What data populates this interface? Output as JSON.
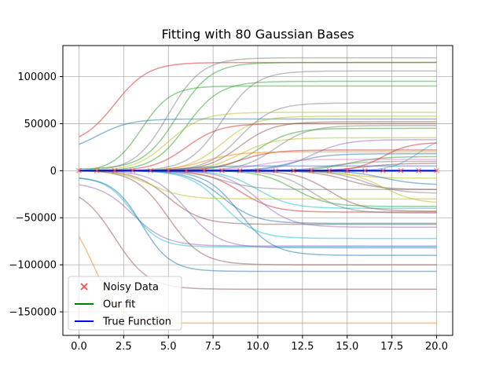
{
  "chart_data": {
    "type": "line",
    "title": "Fitting with 80 Gaussian Bases",
    "xlabel": "",
    "ylabel": "",
    "xlim": [
      -0.9,
      20.9
    ],
    "ylim": [
      -175000,
      133000
    ],
    "x_ticks": [
      0.0,
      2.5,
      5.0,
      7.5,
      10.0,
      12.5,
      15.0,
      17.5,
      20.0
    ],
    "x_tick_labels": [
      "0.0",
      "2.5",
      "5.0",
      "7.5",
      "10.0",
      "12.5",
      "15.0",
      "17.5",
      "20.0"
    ],
    "y_ticks": [
      100000,
      50000,
      0,
      -50000,
      -100000,
      -150000
    ],
    "y_tick_labels": [
      "100000",
      "50000",
      "0",
      "−50000",
      "−100000",
      "−150000"
    ],
    "grid": true,
    "legend_position": "lower-left",
    "legend": [
      {
        "label": "Noisy Data",
        "kind": "marker",
        "color": "#ff4d4d"
      },
      {
        "label": "Our fit",
        "kind": "line",
        "color": "#008000"
      },
      {
        "label": "True Function",
        "kind": "line",
        "color": "#0000ff"
      }
    ],
    "basis_series": [
      {
        "start": 36000,
        "end": 115000,
        "center": 2.0,
        "width": 1.5,
        "color": "#d62728"
      },
      {
        "start": 2000,
        "end": 115000,
        "center": 5.5,
        "width": 1.5,
        "color": "#2ca02c"
      },
      {
        "start": 0,
        "end": 120000,
        "center": 5.0,
        "width": 1.5,
        "color": "#7f7f7f"
      },
      {
        "start": 0,
        "end": 106000,
        "center": 8.0,
        "width": 1.5,
        "color": "#7f7f7f"
      },
      {
        "start": 0,
        "end": 95000,
        "center": 6.0,
        "width": 1.5,
        "color": "#2ca02c"
      },
      {
        "start": 0,
        "end": 90000,
        "center": 3.5,
        "width": 1.3,
        "color": "#2ca02c"
      },
      {
        "start": 0,
        "end": 72000,
        "center": 9.0,
        "width": 1.5,
        "color": "#7f7f7f"
      },
      {
        "start": 0,
        "end": 62000,
        "center": 5.0,
        "width": 1.5,
        "color": "#bcbd22"
      },
      {
        "start": 28000,
        "end": 55000,
        "center": 1.0,
        "width": 1.5,
        "color": "#1f77b4"
      },
      {
        "start": 0,
        "end": 58000,
        "center": 8.0,
        "width": 1.5,
        "color": "#bcbd22"
      },
      {
        "start": 0,
        "end": 52000,
        "center": 9.0,
        "width": 1.5,
        "color": "#8c564b"
      },
      {
        "start": 0,
        "end": 50000,
        "center": 6.0,
        "width": 1.5,
        "color": "#d62728"
      },
      {
        "start": 0,
        "end": 48000,
        "center": 11.0,
        "width": 1.5,
        "color": "#7f7f7f"
      },
      {
        "start": 0,
        "end": 45000,
        "center": 10.0,
        "width": 1.5,
        "color": "#2ca02c"
      },
      {
        "start": 0,
        "end": 38000,
        "center": 19.0,
        "width": 1.2,
        "color": "#17becf"
      },
      {
        "start": 0,
        "end": 35000,
        "center": 9.0,
        "width": 1.5,
        "color": "#bcbd22"
      },
      {
        "start": 0,
        "end": 33000,
        "center": 13.0,
        "width": 1.5,
        "color": "#9467bd"
      },
      {
        "start": 0,
        "end": 22000,
        "center": 9.0,
        "width": 1.5,
        "color": "#d62728"
      },
      {
        "start": 0,
        "end": 20000,
        "center": 7.0,
        "width": 1.5,
        "color": "#ff7f0e"
      },
      {
        "start": 0,
        "end": 18000,
        "center": 12.0,
        "width": 1.5,
        "color": "#1f77b4"
      },
      {
        "start": 0,
        "end": 15000,
        "center": 15.0,
        "width": 1.5,
        "color": "#2ca02c"
      },
      {
        "start": 0,
        "end": 12000,
        "center": 10.0,
        "width": 1.5,
        "color": "#e377c2"
      },
      {
        "start": 0,
        "end": 10000,
        "center": 14.0,
        "width": 1.5,
        "color": "#7f7f7f"
      },
      {
        "start": 0,
        "end": 8000,
        "center": 16.0,
        "width": 1.5,
        "color": "#8c564b"
      },
      {
        "start": 0,
        "end": -8000,
        "center": 15.0,
        "width": 1.5,
        "color": "#bcbd22"
      },
      {
        "start": 0,
        "end": -15000,
        "center": 17.0,
        "width": 1.5,
        "color": "#1f77b4"
      },
      {
        "start": 0,
        "end": -20000,
        "center": 15.0,
        "width": 1.5,
        "color": "#8c564b"
      },
      {
        "start": 0,
        "end": -24000,
        "center": 16.0,
        "width": 1.5,
        "color": "#7f7f7f"
      },
      {
        "start": 0,
        "end": -35000,
        "center": 17.0,
        "width": 1.5,
        "color": "#bcbd22"
      },
      {
        "start": 0,
        "end": -38000,
        "center": 12.0,
        "width": 1.5,
        "color": "#2ca02c"
      },
      {
        "start": 0,
        "end": -40000,
        "center": 10.0,
        "width": 1.5,
        "color": "#17becf"
      },
      {
        "start": 0,
        "end": -43000,
        "center": 14.0,
        "width": 1.5,
        "color": "#8c564b"
      },
      {
        "start": 0,
        "end": -44000,
        "center": 9.0,
        "width": 1.5,
        "color": "#d62728"
      },
      {
        "start": 0,
        "end": -45000,
        "center": 13.0,
        "width": 1.5,
        "color": "#7f7f7f"
      },
      {
        "start": 0,
        "end": -56000,
        "center": 8.0,
        "width": 1.5,
        "color": "#1f77b4"
      },
      {
        "start": 0,
        "end": -57000,
        "center": 5.0,
        "width": 1.5,
        "color": "#8c564b"
      },
      {
        "start": 0,
        "end": -60000,
        "center": 10.0,
        "width": 1.5,
        "color": "#9467bd"
      },
      {
        "start": 0,
        "end": -72000,
        "center": 8.0,
        "width": 1.5,
        "color": "#17becf"
      },
      {
        "start": -15000,
        "end": -80000,
        "center": 3.0,
        "width": 1.5,
        "color": "#9467bd"
      },
      {
        "start": -8000,
        "end": -81000,
        "center": 3.0,
        "width": 1.2,
        "color": "#17becf"
      },
      {
        "start": 0,
        "end": -82000,
        "center": 6.0,
        "width": 1.5,
        "color": "#9467bd"
      },
      {
        "start": 0,
        "end": -90000,
        "center": 9.0,
        "width": 1.5,
        "color": "#1f77b4"
      },
      {
        "start": 0,
        "end": -100000,
        "center": 5.0,
        "width": 1.5,
        "color": "#8c564b"
      },
      {
        "start": -8000,
        "end": -107000,
        "center": 3.5,
        "width": 1.3,
        "color": "#1f77b4"
      },
      {
        "start": -28000,
        "end": -126000,
        "center": 2.0,
        "width": 1.5,
        "color": "#8c564b"
      },
      {
        "start": -70000,
        "end": -162000,
        "center": 0.8,
        "width": 1.2,
        "color": "#ff7f0e"
      },
      {
        "start": 0,
        "end": -20000,
        "center": 8.0,
        "width": 1.5,
        "color": "#7f7f7f"
      },
      {
        "start": 0,
        "end": 5000,
        "center": 6.0,
        "width": 1.5,
        "color": "#1f77b4"
      },
      {
        "start": 0,
        "end": -30000,
        "center": 4.0,
        "width": 1.5,
        "color": "#bcbd22"
      },
      {
        "start": 0,
        "end": 30000,
        "center": 17.0,
        "width": 1.2,
        "color": "#d62728"
      }
    ],
    "fit_series": {
      "name": "Our fit",
      "color": "#008000",
      "x": [
        0,
        20
      ],
      "y": [
        0,
        0
      ]
    },
    "true_series": {
      "name": "True Function",
      "color": "#0000ff",
      "x": [
        0,
        20
      ],
      "y": [
        0,
        0
      ]
    },
    "noisy_data": {
      "name": "Noisy Data",
      "color": "#ff4d4d",
      "x": [
        0,
        1,
        2,
        3,
        4,
        5,
        6,
        7,
        8,
        9,
        10,
        11,
        12,
        13,
        14,
        15,
        16,
        17,
        18,
        19,
        20
      ],
      "y": [
        0,
        0,
        0,
        0,
        0,
        0,
        0,
        0,
        0,
        0,
        0,
        0,
        0,
        0,
        0,
        0,
        0,
        0,
        0,
        0,
        0
      ]
    }
  }
}
